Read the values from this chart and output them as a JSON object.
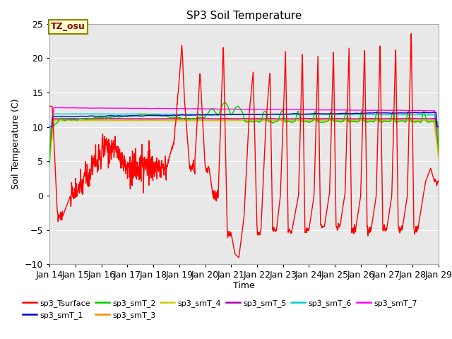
{
  "title": "SP3 Soil Temperature",
  "ylabel": "Soil Temperature (C)",
  "xlabel": "Time",
  "xlim_days": [
    14,
    29
  ],
  "ylim": [
    -10,
    25
  ],
  "yticks": [
    -10,
    -5,
    0,
    5,
    10,
    15,
    20,
    25
  ],
  "xtick_labels": [
    "Jan 14",
    "Jan 15",
    "Jan 16",
    "Jan 17",
    "Jan 18",
    "Jan 19",
    "Jan 20",
    "Jan 21",
    "Jan 22",
    "Jan 23",
    "Jan 24",
    "Jan 25",
    "Jan 26",
    "Jan 27",
    "Jan 28",
    "Jan 29"
  ],
  "background_color": "#e8e8e8",
  "figure_bg": "#ffffff",
  "tz_label": "TZ_osu",
  "tz_box_color": "#ffffcc",
  "tz_text_color": "#880000",
  "series_colors": {
    "sp3_Tsurface": "#ff0000",
    "sp3_smT_1": "#0000cc",
    "sp3_smT_2": "#00cc00",
    "sp3_smT_3": "#ff8800",
    "sp3_smT_4": "#cccc00",
    "sp3_smT_5": "#aa00aa",
    "sp3_smT_6": "#00cccc",
    "sp3_smT_7": "#ff00ff"
  }
}
